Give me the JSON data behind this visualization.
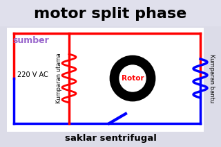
{
  "title": "motor split phase",
  "title_fontsize": 16,
  "title_color": "#000000",
  "bg_color": "#dcdce8",
  "box_bg": "#ffffff",
  "label_sumber": "sumber",
  "label_voltage": "220 V AC",
  "label_kumparan_utama": "Kumparan utama",
  "label_kumparan_bantu": "Kumparan bantu",
  "label_rotor": "Rotor",
  "label_saklar": "saklar sentrifugal",
  "red_color": "#ff0000",
  "blue_color": "#0000ff",
  "purple_color": "#9966cc",
  "black_color": "#000000",
  "white_color": "#ffffff",
  "title_bg": "#e0e0ec",
  "figsize": [
    3.2,
    2.12
  ],
  "dpi": 100
}
